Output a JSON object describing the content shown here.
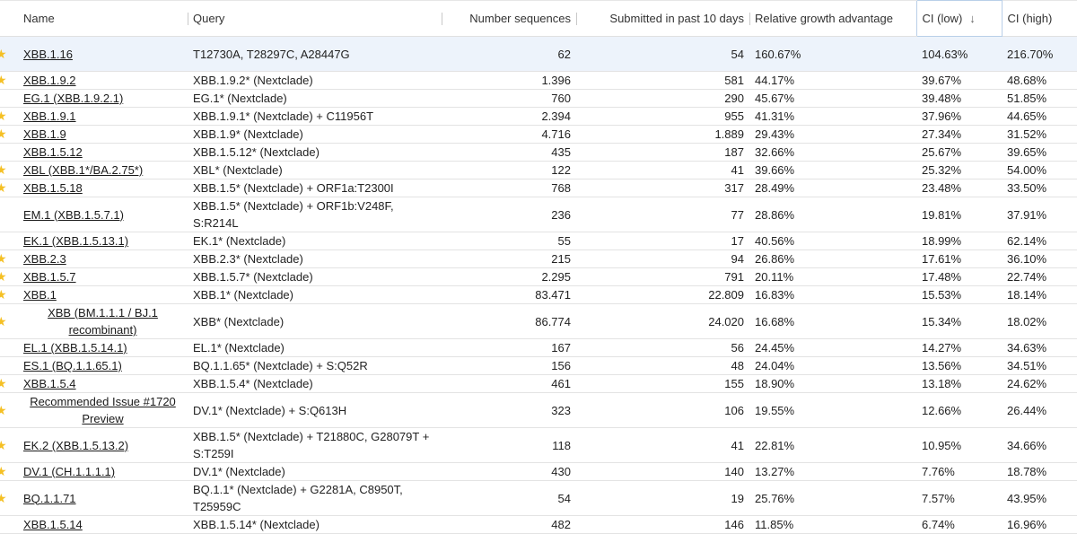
{
  "columns": {
    "name": "Name",
    "query": "Query",
    "num_sequences": "Number sequences",
    "submitted": "Submitted in past 10 days",
    "relative": "Relative growth advantage",
    "ci_low": "CI (low)",
    "ci_high": "CI (high)",
    "sort_icon": "arrow-down-icon"
  },
  "accent_color": "#f5c024",
  "rows": [
    {
      "starred": true,
      "name": "XBB.1.16",
      "query": "T12730A, T28297C, A28447G",
      "num": "62",
      "sub": "54",
      "rel": "160.67%",
      "lo": "104.63%",
      "hi": "216.70%"
    },
    {
      "starred": true,
      "name": "XBB.1.9.2",
      "query": "XBB.1.9.2* (Nextclade)",
      "num": "1.396",
      "sub": "581",
      "rel": "44.17%",
      "lo": "39.67%",
      "hi": "48.68%"
    },
    {
      "starred": false,
      "name": "EG.1 (XBB.1.9.2.1)",
      "query": "EG.1* (Nextclade)",
      "num": "760",
      "sub": "290",
      "rel": "45.67%",
      "lo": "39.48%",
      "hi": "51.85%"
    },
    {
      "starred": true,
      "name": "XBB.1.9.1",
      "query": "XBB.1.9.1* (Nextclade) + C11956T",
      "num": "2.394",
      "sub": "955",
      "rel": "41.31%",
      "lo": "37.96%",
      "hi": "44.65%"
    },
    {
      "starred": true,
      "name": "XBB.1.9",
      "query": "XBB.1.9* (Nextclade)",
      "num": "4.716",
      "sub": "1.889",
      "rel": "29.43%",
      "lo": "27.34%",
      "hi": "31.52%"
    },
    {
      "starred": false,
      "name": "XBB.1.5.12",
      "query": "XBB.1.5.12* (Nextclade)",
      "num": "435",
      "sub": "187",
      "rel": "32.66%",
      "lo": "25.67%",
      "hi": "39.65%"
    },
    {
      "starred": true,
      "name": "XBL (XBB.1*/BA.2.75*)",
      "query": "XBL* (Nextclade)",
      "num": "122",
      "sub": "41",
      "rel": "39.66%",
      "lo": "25.32%",
      "hi": "54.00%"
    },
    {
      "starred": true,
      "name": "XBB.1.5.18",
      "query": "XBB.1.5* (Nextclade) + ORF1a:T2300I",
      "num": "768",
      "sub": "317",
      "rel": "28.49%",
      "lo": "23.48%",
      "hi": "33.50%"
    },
    {
      "starred": false,
      "name": "EM.1 (XBB.1.5.7.1)",
      "query": "XBB.1.5* (Nextclade) + ORF1b:V248F, S:R214L",
      "num": "236",
      "sub": "77",
      "rel": "28.86%",
      "lo": "19.81%",
      "hi": "37.91%"
    },
    {
      "starred": false,
      "name": "EK.1 (XBB.1.5.13.1)",
      "query": "EK.1* (Nextclade)",
      "num": "55",
      "sub": "17",
      "rel": "40.56%",
      "lo": "18.99%",
      "hi": "62.14%"
    },
    {
      "starred": true,
      "name": "XBB.2.3",
      "query": "XBB.2.3* (Nextclade)",
      "num": "215",
      "sub": "94",
      "rel": "26.86%",
      "lo": "17.61%",
      "hi": "36.10%"
    },
    {
      "starred": true,
      "name": "XBB.1.5.7",
      "query": "XBB.1.5.7* (Nextclade)",
      "num": "2.295",
      "sub": "791",
      "rel": "20.11%",
      "lo": "17.48%",
      "hi": "22.74%"
    },
    {
      "starred": true,
      "name": "XBB.1",
      "query": "XBB.1* (Nextclade)",
      "num": "83.471",
      "sub": "22.809",
      "rel": "16.83%",
      "lo": "15.53%",
      "hi": "18.14%"
    },
    {
      "starred": true,
      "name": "XBB (BM.1.1.1 / BJ.1 recombinant)",
      "query": "XBB* (Nextclade)",
      "num": "86.774",
      "sub": "24.020",
      "rel": "16.68%",
      "lo": "15.34%",
      "hi": "18.02%",
      "center": true
    },
    {
      "starred": false,
      "name": "EL.1 (XBB.1.5.14.1)",
      "query": "EL.1* (Nextclade)",
      "num": "167",
      "sub": "56",
      "rel": "24.45%",
      "lo": "14.27%",
      "hi": "34.63%"
    },
    {
      "starred": false,
      "name": "ES.1 (BQ.1.1.65.1)",
      "query": "BQ.1.1.65* (Nextclade) + S:Q52R",
      "num": "156",
      "sub": "48",
      "rel": "24.04%",
      "lo": "13.56%",
      "hi": "34.51%"
    },
    {
      "starred": true,
      "name": "XBB.1.5.4",
      "query": "XBB.1.5.4* (Nextclade)",
      "num": "461",
      "sub": "155",
      "rel": "18.90%",
      "lo": "13.18%",
      "hi": "24.62%"
    },
    {
      "starred": true,
      "name": "Recommended Issue #1720 Preview",
      "query": "DV.1* (Nextclade) + S:Q613H",
      "num": "323",
      "sub": "106",
      "rel": "19.55%",
      "lo": "12.66%",
      "hi": "26.44%",
      "center": true
    },
    {
      "starred": true,
      "name": "EK.2 (XBB.1.5.13.2)",
      "query": "XBB.1.5* (Nextclade) + T21880C, G28079T + S:T259I",
      "num": "118",
      "sub": "41",
      "rel": "22.81%",
      "lo": "10.95%",
      "hi": "34.66%"
    },
    {
      "starred": true,
      "name": "DV.1 (CH.1.1.1.1)",
      "query": "DV.1* (Nextclade)",
      "num": "430",
      "sub": "140",
      "rel": "13.27%",
      "lo": "7.76%",
      "hi": "18.78%"
    },
    {
      "starred": true,
      "name": "BQ.1.1.71",
      "query": "BQ.1.1* (Nextclade) + G2281A, C8950T, T25959C",
      "num": "54",
      "sub": "19",
      "rel": "25.76%",
      "lo": "7.57%",
      "hi": "43.95%"
    },
    {
      "starred": false,
      "name": "XBB.1.5.14",
      "query": "XBB.1.5.14* (Nextclade)",
      "num": "482",
      "sub": "146",
      "rel": "11.85%",
      "lo": "6.74%",
      "hi": "16.96%"
    }
  ]
}
